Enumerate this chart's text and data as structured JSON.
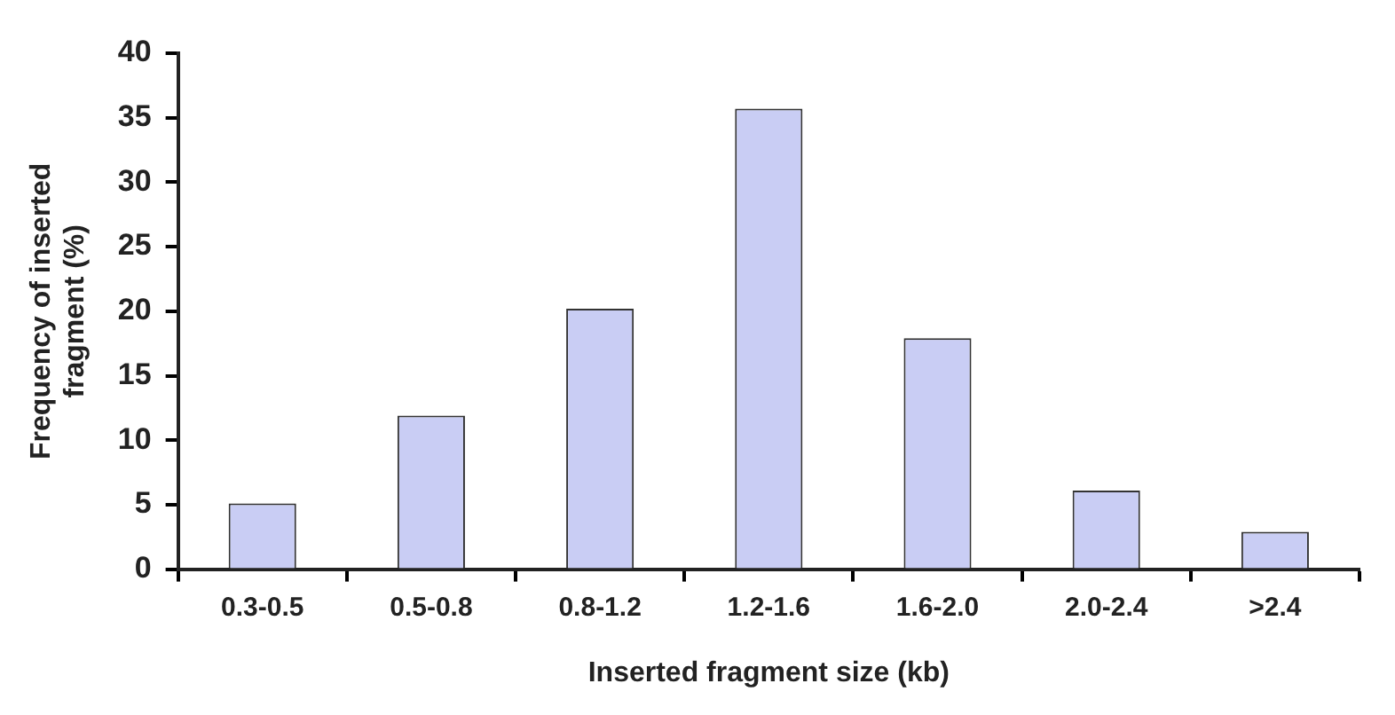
{
  "chart_data": {
    "type": "bar",
    "xlabel": "Inserted fragment size (kb)",
    "ylabel": "Frequency of inserted fragment (%)",
    "categories": [
      "0.3-0.5",
      "0.5-0.8",
      "0.8-1.2",
      "1.2-1.6",
      "1.6-2.0",
      "2.0-2.4",
      ">2.4"
    ],
    "values": [
      5.1,
      11.9,
      20.2,
      35.7,
      17.9,
      6.1,
      2.9
    ],
    "color": "#c9cdf4",
    "ylim": [
      0,
      40
    ],
    "yticks": [
      0,
      5,
      10,
      15,
      20,
      25,
      30,
      35,
      40
    ],
    "grid": false,
    "legend": false
  }
}
